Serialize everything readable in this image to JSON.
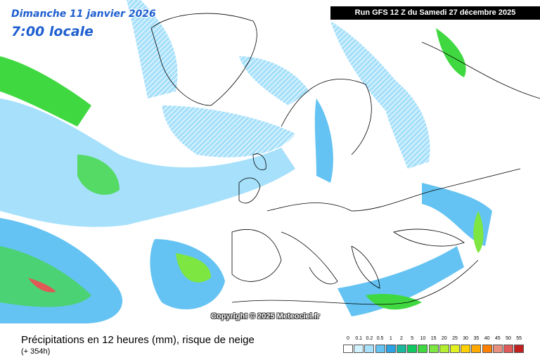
{
  "header": {
    "date": "Dimanche 11 janvier 2026",
    "time": "7:00 locale",
    "run": "Run GFS 12 Z du Samedi 27 décembre 2025"
  },
  "copyright": "Copyright © 2025 Meteociel.fr",
  "footer": {
    "title": "Précipitations en 12 heures (mm), risque de neige",
    "subtitle": "(+ 354h)"
  },
  "legend": {
    "items": [
      {
        "label": "0",
        "color": "#ffffff"
      },
      {
        "label": "0.1",
        "color": "#d2f2ff"
      },
      {
        "label": "0.2",
        "color": "#a6e0fb"
      },
      {
        "label": "0.5",
        "color": "#64c3f2"
      },
      {
        "label": "1",
        "color": "#2aa2e4"
      },
      {
        "label": "2",
        "color": "#1ab89c"
      },
      {
        "label": "5",
        "color": "#10c860"
      },
      {
        "label": "10",
        "color": "#40d840"
      },
      {
        "label": "15",
        "color": "#7ee640"
      },
      {
        "label": "20",
        "color": "#b4ee30"
      },
      {
        "label": "25",
        "color": "#e0f020"
      },
      {
        "label": "30",
        "color": "#ffd000"
      },
      {
        "label": "35",
        "color": "#ffa800"
      },
      {
        "label": "40",
        "color": "#ff8000"
      },
      {
        "label": "45",
        "color": "#e89080"
      },
      {
        "label": "50",
        "color": "#e05858"
      },
      {
        "label": "55",
        "color": "#c02020"
      }
    ]
  }
}
